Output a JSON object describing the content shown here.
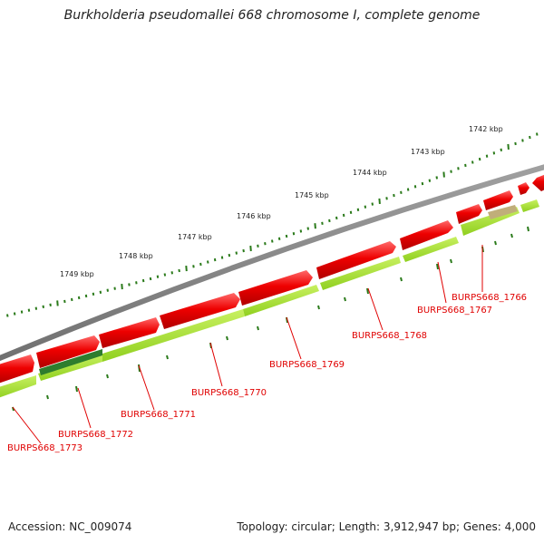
{
  "title": "Burkholderia pseudomallei 668 chromosome I, complete genome",
  "accession": "Accession: NC_009074",
  "topology": "Topology: circular; Length: 3,912,947 bp; Genes: 4,000",
  "ruler": {
    "ticks": [
      {
        "kbp": 1742,
        "label": "1742 kbp"
      },
      {
        "kbp": 1743,
        "label": "1743 kbp"
      },
      {
        "kbp": 1744,
        "label": "1744 kbp"
      },
      {
        "kbp": 1745,
        "label": "1745 kbp"
      },
      {
        "kbp": 1746,
        "label": "1746 kbp"
      },
      {
        "kbp": 1747,
        "label": "1747 kbp"
      },
      {
        "kbp": 1748,
        "label": "1748 kbp"
      },
      {
        "kbp": 1749,
        "label": "1749 kbp"
      }
    ]
  },
  "genes": [
    {
      "label": "BURPS668_1766",
      "color": "#e00000"
    },
    {
      "label": "BURPS668_1767",
      "color": "#e00000"
    },
    {
      "label": "BURPS668_1768",
      "color": "#e00000"
    },
    {
      "label": "BURPS668_1769",
      "color": "#e00000"
    },
    {
      "label": "BURPS668_1770",
      "color": "#e00000"
    },
    {
      "label": "BURPS668_1771",
      "color": "#e00000"
    },
    {
      "label": "BURPS668_1772",
      "color": "#e00000"
    },
    {
      "label": "BURPS668_1773",
      "color": "#e00000"
    }
  ],
  "colors": {
    "backbone": "#808080",
    "cds": "#ee0000",
    "gene_feature": "#a6e22e",
    "rna": "#2e7d2e",
    "misc": "#c0ae7a",
    "tick": "#2a7a1a"
  }
}
